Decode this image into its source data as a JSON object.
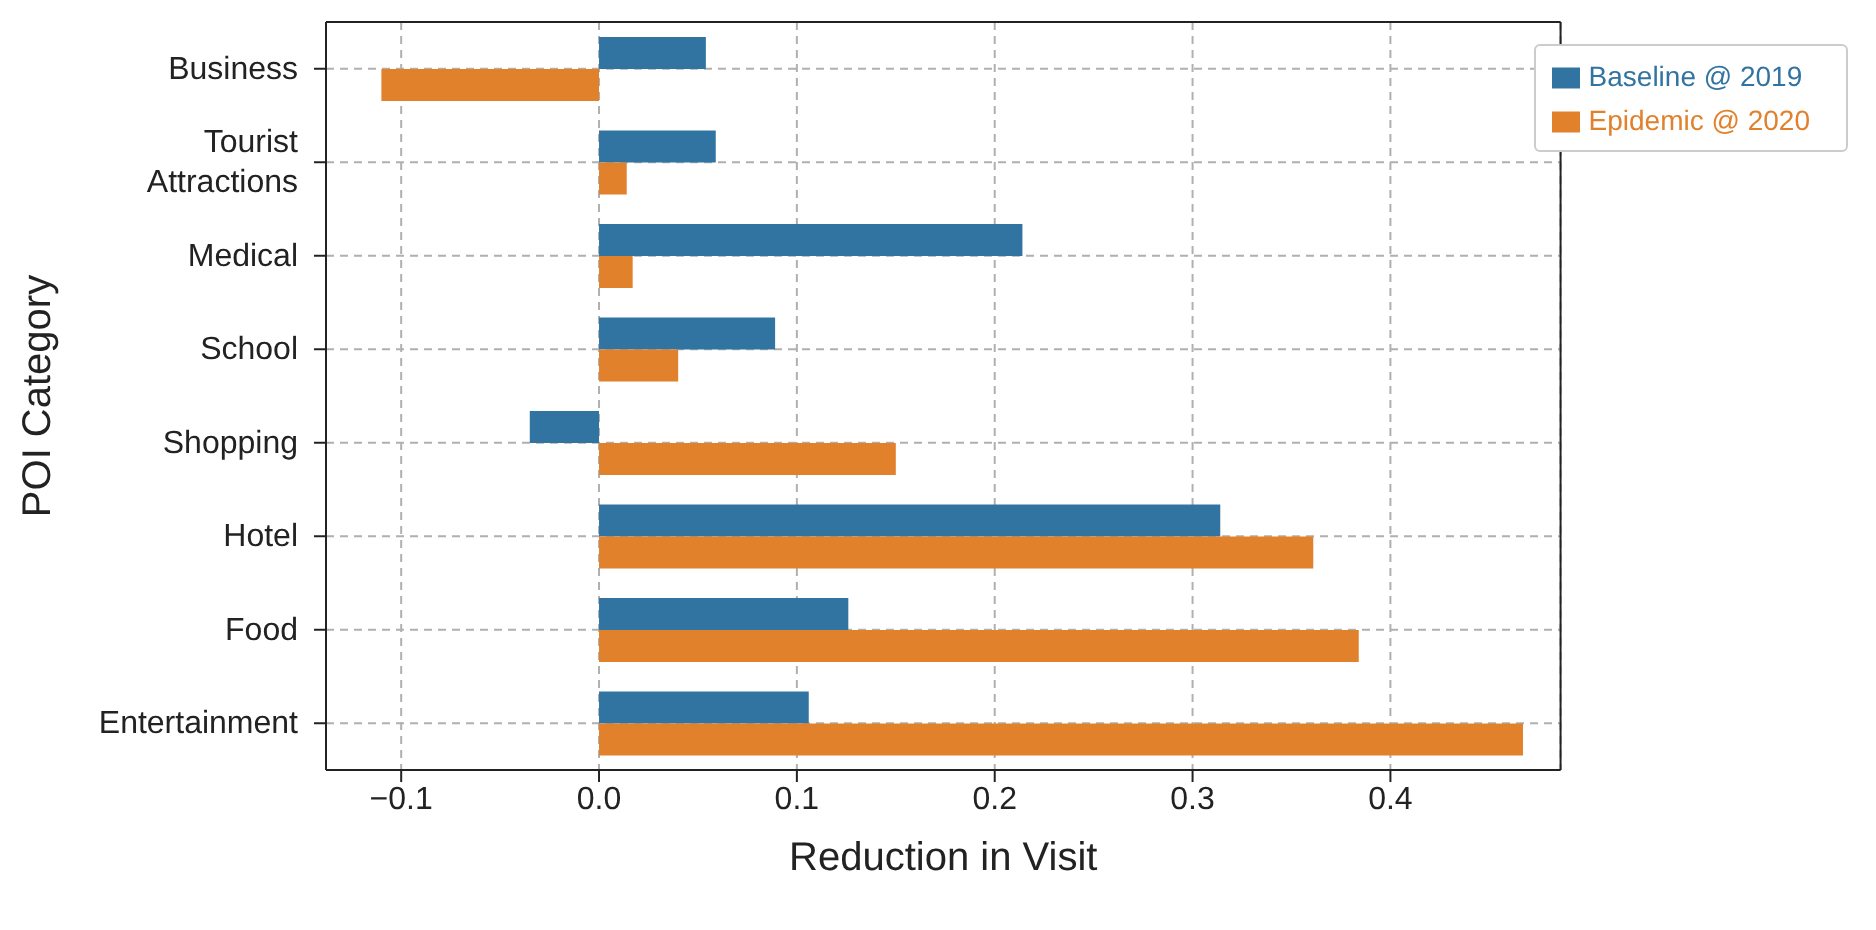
{
  "chart_data": {
    "type": "bar",
    "orientation": "horizontal",
    "xlabel": "Reduction in Visit",
    "ylabel": "POI Category",
    "categories": [
      "Business",
      "Tourist Attractions",
      "Medical",
      "School",
      "Shopping",
      "Hotel",
      "Food",
      "Entertainment"
    ],
    "series": [
      {
        "name": "Baseline @ 2019",
        "color": "#3274a1",
        "values": [
          0.054,
          0.059,
          0.214,
          0.089,
          -0.035,
          0.314,
          0.126,
          0.106
        ]
      },
      {
        "name": "Epidemic @ 2020",
        "color": "#e1812c",
        "values": [
          -0.11,
          0.014,
          0.017,
          0.04,
          0.15,
          0.361,
          0.384,
          0.467
        ]
      }
    ],
    "xlim": [
      -0.138,
      0.486
    ],
    "xticks": [
      {
        "value": -0.1,
        "label": "−0.1"
      },
      {
        "value": 0,
        "label": "0.0"
      },
      0.1,
      0.2,
      0.3,
      0.4
    ],
    "grid": true,
    "legend": "top right"
  }
}
